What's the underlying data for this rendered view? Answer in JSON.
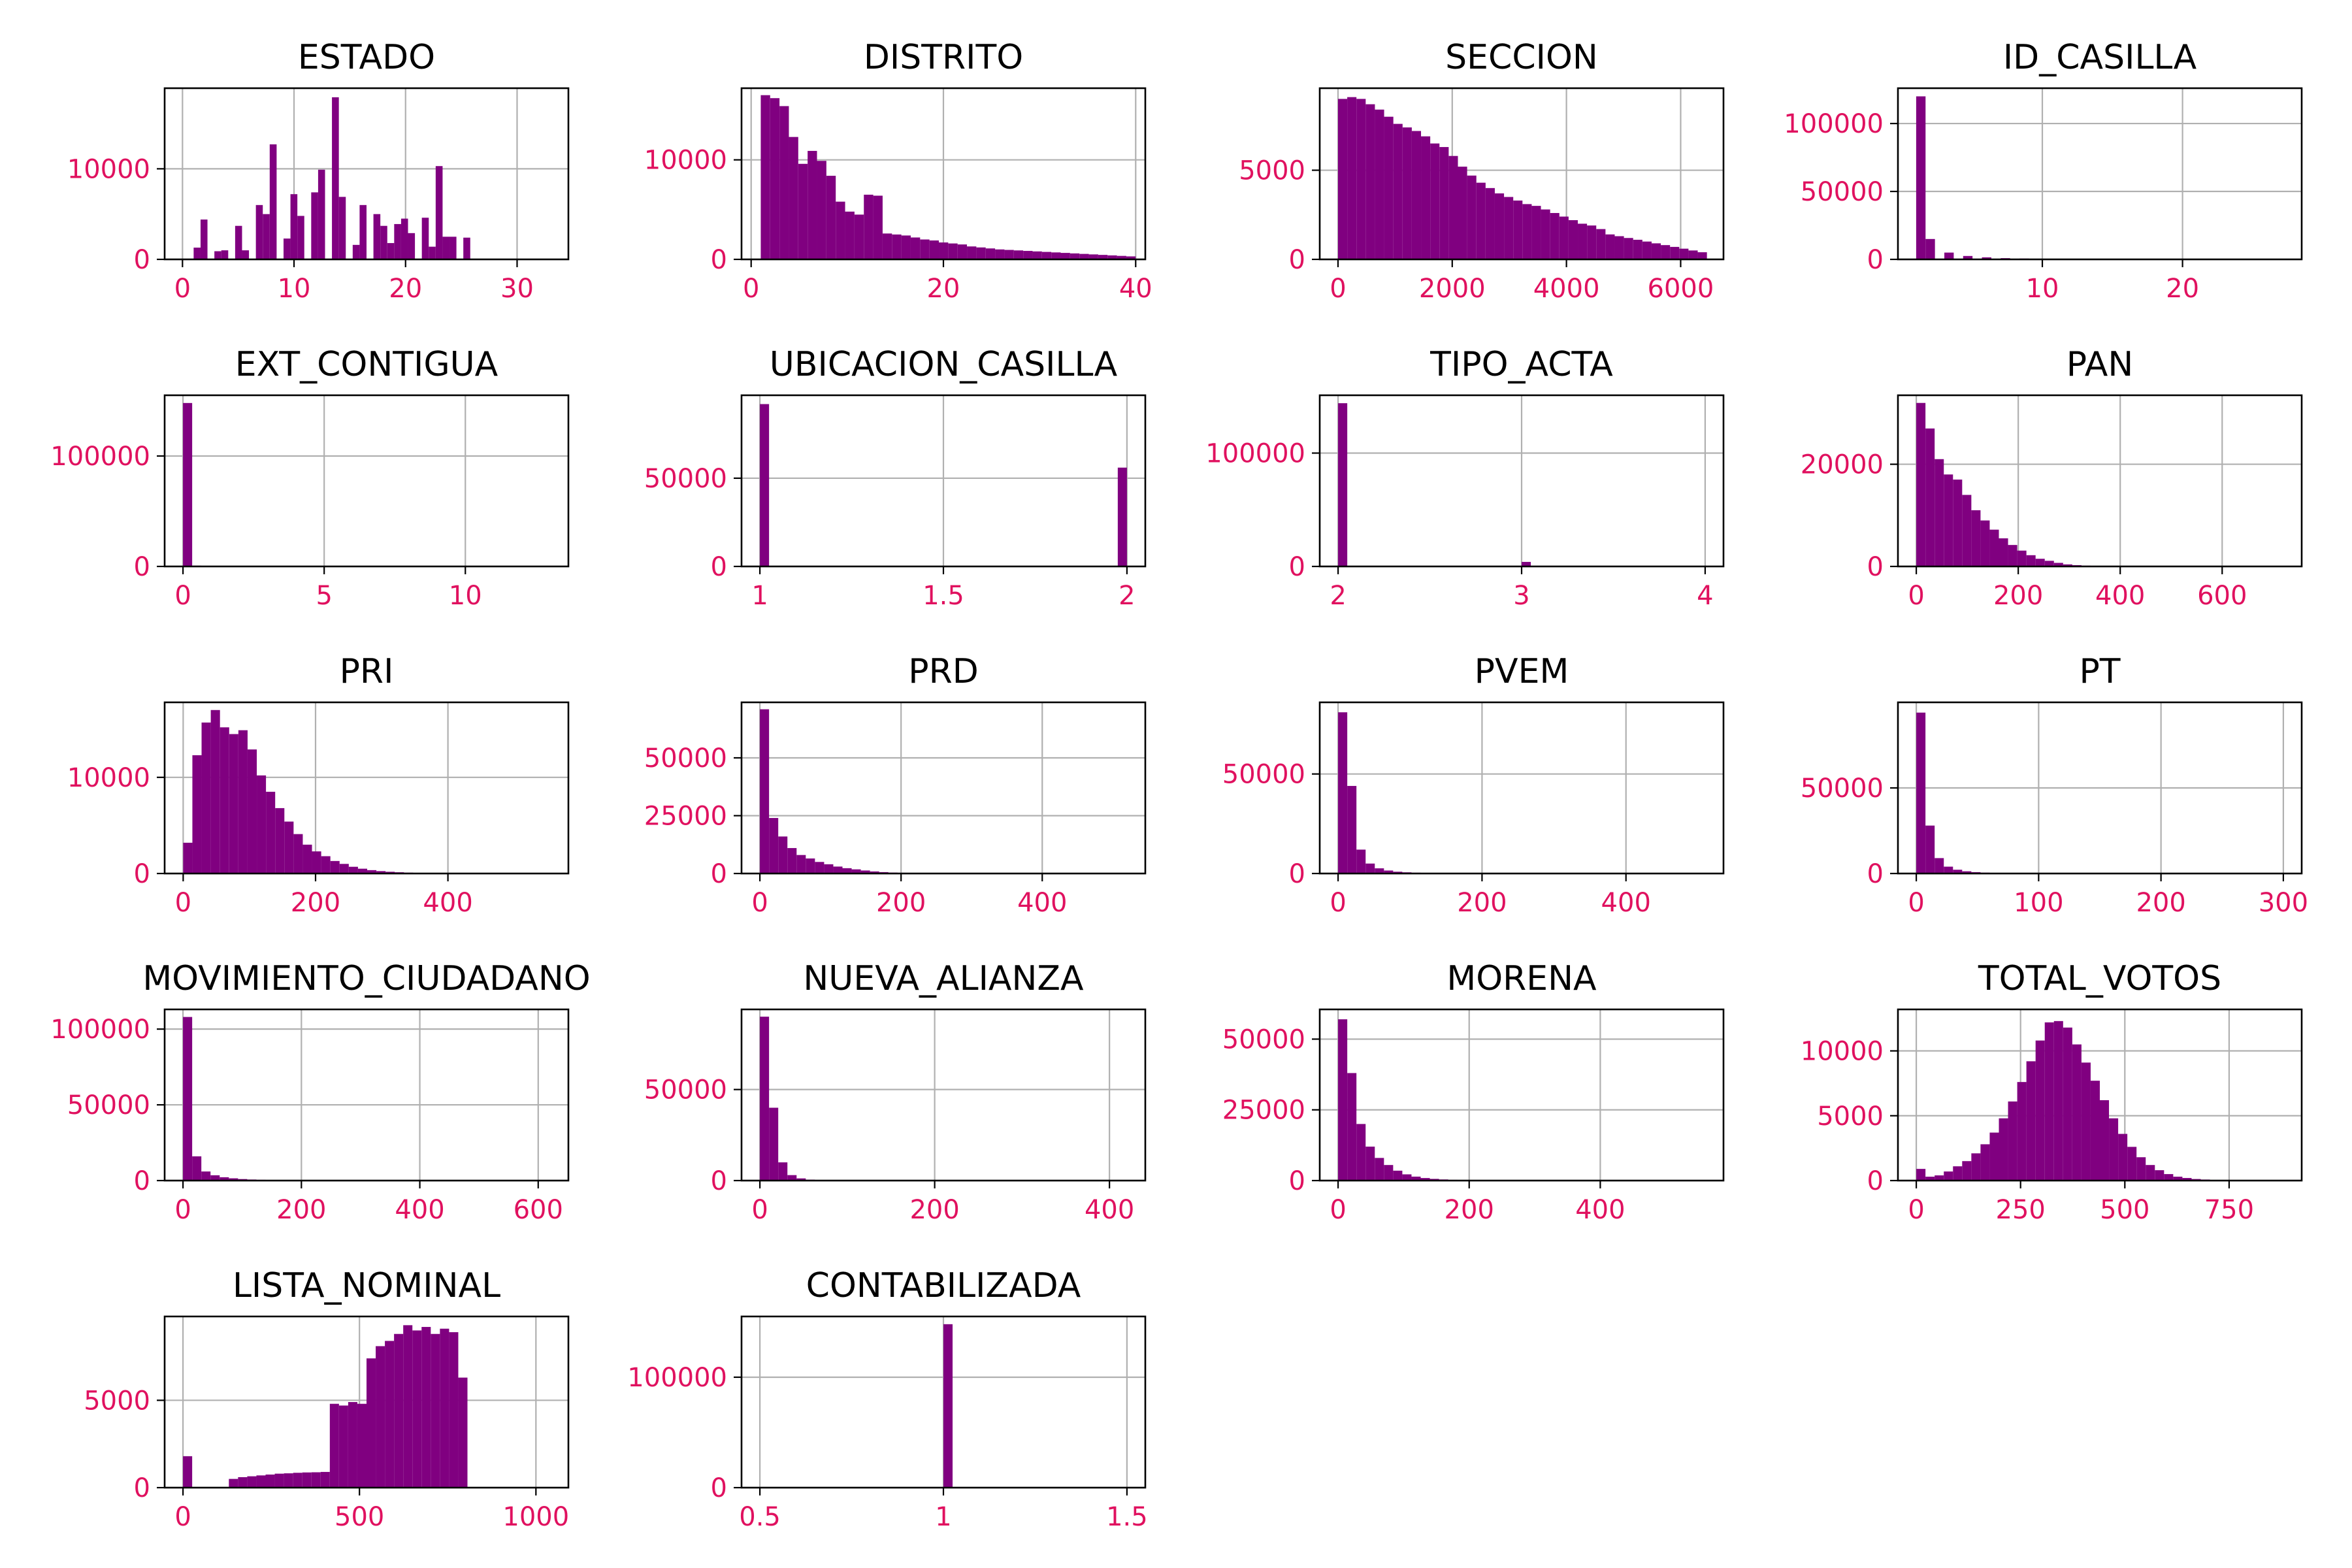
{
  "figure": {
    "bar_color": "#800080",
    "tick_label_color": "#e0115f",
    "frame_color": "#000000",
    "grid_color": "#b0b0b0"
  },
  "chart_data": [
    {
      "type": "bar",
      "title": "ESTADO",
      "grid": true,
      "xlim": [
        -1.6,
        34.6
      ],
      "ylim": [
        0,
        18900
      ],
      "xticks": [
        0,
        10,
        20,
        30
      ],
      "yticks": [
        0,
        10000
      ],
      "bin_start": 1,
      "bin_width": 0.62,
      "values": [
        1300,
        4400,
        0,
        900,
        1000,
        0,
        3700,
        1000,
        0,
        6000,
        5000,
        12700,
        0,
        2300,
        7200,
        4800,
        0,
        7400,
        9900,
        0,
        17900,
        6900,
        0,
        1600,
        6000,
        0,
        5000,
        3700,
        1800,
        3900,
        4500,
        2900,
        0,
        4600,
        1400,
        10300,
        2500,
        2500,
        0,
        2400
      ]
    },
    {
      "type": "bar",
      "title": "DISTRITO",
      "grid": true,
      "xlim": [
        -1,
        41
      ],
      "ylim": [
        0,
        17200
      ],
      "xticks": [
        0,
        20,
        40
      ],
      "yticks": [
        0,
        10000
      ],
      "bin_start": 1,
      "bin_width": 0.975,
      "values": [
        16500,
        16200,
        15400,
        12300,
        9600,
        10900,
        9900,
        8400,
        5800,
        4800,
        4500,
        6500,
        6400,
        2600,
        2500,
        2400,
        2200,
        2000,
        1900,
        1700,
        1600,
        1500,
        1300,
        1200,
        1100,
        1000,
        950,
        900,
        850,
        800,
        750,
        700,
        650,
        600,
        550,
        500,
        450,
        400,
        350,
        300
      ]
    },
    {
      "type": "bar",
      "title": "SECCION",
      "grid": true,
      "xlim": [
        -320,
        6750
      ],
      "ylim": [
        0,
        9600
      ],
      "xticks": [
        0,
        2000,
        4000,
        6000
      ],
      "yticks": [
        0,
        5000
      ],
      "bin_start": 0,
      "bin_width": 161.5,
      "values": [
        9000,
        9100,
        9000,
        8700,
        8400,
        8000,
        7600,
        7400,
        7200,
        6900,
        6500,
        6300,
        5800,
        5200,
        4700,
        4300,
        4000,
        3700,
        3500,
        3300,
        3100,
        3000,
        2800,
        2600,
        2400,
        2200,
        2000,
        1900,
        1700,
        1400,
        1300,
        1200,
        1100,
        1000,
        900,
        800,
        700,
        600,
        500,
        400
      ]
    },
    {
      "type": "bar",
      "title": "ID_CASILLA",
      "grid": true,
      "xlim": [
        -0.3,
        28.5
      ],
      "ylim": [
        0,
        126000
      ],
      "xticks": [
        10,
        20
      ],
      "yticks": [
        0,
        50000,
        100000
      ],
      "bin_start": 1,
      "bin_width": 0.67,
      "values": [
        120000,
        15000,
        0,
        5000,
        0,
        2500,
        0,
        1500,
        0,
        900,
        0,
        600,
        0,
        400,
        0,
        300,
        0,
        200,
        0,
        150,
        0,
        100,
        0,
        100,
        0,
        80,
        0,
        60,
        0,
        50,
        0,
        40,
        0,
        30,
        0,
        20,
        0,
        20,
        0,
        10
      ]
    },
    {
      "type": "bar",
      "title": "EXT_CONTIGUA",
      "grid": true,
      "xlim": [
        -0.65,
        13.65
      ],
      "ylim": [
        0,
        155000
      ],
      "xticks": [
        0,
        5,
        10
      ],
      "yticks": [
        0,
        100000
      ],
      "bin_start": 0,
      "bin_width": 0.325,
      "values": [
        148000,
        700,
        0,
        300,
        0,
        200,
        0,
        100,
        0,
        100,
        0,
        50,
        0,
        50,
        0,
        40,
        0,
        30,
        0,
        20,
        0,
        20,
        0,
        10,
        0,
        10,
        0,
        10,
        0,
        10,
        0,
        10,
        0,
        10,
        0,
        10,
        0,
        10,
        0,
        10
      ]
    },
    {
      "type": "bar",
      "title": "UBICACION_CASILLA",
      "grid": true,
      "xlim": [
        0.95,
        2.05
      ],
      "ylim": [
        0,
        97000
      ],
      "xticks": [
        1.0,
        1.5,
        2.0
      ],
      "yticks": [
        0,
        50000
      ],
      "bin_start": 1,
      "bin_width": 0.025,
      "values": [
        92000,
        0,
        0,
        0,
        0,
        0,
        0,
        0,
        0,
        0,
        0,
        0,
        0,
        0,
        0,
        0,
        0,
        0,
        0,
        0,
        0,
        0,
        0,
        0,
        0,
        0,
        0,
        0,
        0,
        0,
        0,
        0,
        0,
        0,
        0,
        0,
        0,
        0,
        0,
        56000
      ]
    },
    {
      "type": "bar",
      "title": "TIPO_ACTA",
      "grid": true,
      "xlim": [
        1.9,
        4.1
      ],
      "ylim": [
        0,
        151000
      ],
      "xticks": [
        2,
        3,
        4
      ],
      "yticks": [
        0,
        100000
      ],
      "bin_start": 2,
      "bin_width": 0.05,
      "values": [
        144000,
        0,
        0,
        0,
        0,
        0,
        0,
        0,
        0,
        0,
        0,
        0,
        0,
        0,
        0,
        0,
        0,
        0,
        0,
        0,
        4000,
        0,
        0,
        0,
        0,
        0,
        0,
        0,
        0,
        0,
        0,
        0,
        0,
        0,
        0,
        0,
        0,
        0,
        0,
        300
      ]
    },
    {
      "type": "bar",
      "title": "PAN",
      "grid": true,
      "xlim": [
        -36,
        756
      ],
      "ylim": [
        0,
        33500
      ],
      "xticks": [
        0,
        200,
        400,
        600
      ],
      "yticks": [
        0,
        20000
      ],
      "bin_start": 0,
      "bin_width": 18,
      "values": [
        32000,
        27000,
        21000,
        18000,
        17000,
        14000,
        11000,
        9000,
        7200,
        5500,
        4200,
        3100,
        2200,
        1500,
        1100,
        700,
        400,
        250,
        150,
        100,
        80,
        60,
        40,
        30,
        20,
        20,
        15,
        10,
        10,
        10,
        5,
        5,
        5,
        5,
        5,
        5,
        5,
        5,
        5,
        5
      ]
    },
    {
      "type": "bar",
      "title": "PRI",
      "grid": true,
      "xlim": [
        -28,
        582
      ],
      "ylim": [
        0,
        17800
      ],
      "xticks": [
        0,
        200,
        400
      ],
      "yticks": [
        0,
        10000
      ],
      "bin_start": 0,
      "bin_width": 13.9,
      "values": [
        3200,
        12300,
        15700,
        17000,
        15200,
        14500,
        14900,
        12900,
        10200,
        8500,
        6800,
        5400,
        4100,
        3000,
        2300,
        1800,
        1300,
        1000,
        700,
        500,
        350,
        250,
        180,
        130,
        90,
        60,
        40,
        30,
        20,
        15,
        10,
        8,
        6,
        5,
        4,
        3,
        2,
        2,
        1,
        1
      ]
    },
    {
      "type": "bar",
      "title": "PRD",
      "grid": true,
      "xlim": [
        -26,
        546
      ],
      "ylim": [
        0,
        74000
      ],
      "xticks": [
        0,
        200,
        400
      ],
      "yticks": [
        0,
        25000,
        50000
      ],
      "bin_start": 0,
      "bin_width": 13,
      "values": [
        71000,
        24000,
        16000,
        11000,
        8000,
        6500,
        5000,
        4000,
        3000,
        2300,
        1800,
        1300,
        900,
        600,
        400,
        300,
        200,
        150,
        100,
        80,
        60,
        40,
        30,
        20,
        15,
        10,
        8,
        6,
        5,
        4,
        3,
        2,
        2,
        1,
        1,
        1,
        1,
        1,
        1,
        1
      ]
    },
    {
      "type": "bar",
      "title": "PVEM",
      "grid": true,
      "xlim": [
        -25.5,
        535.5
      ],
      "ylim": [
        0,
        86000
      ],
      "xticks": [
        0,
        200,
        400
      ],
      "yticks": [
        0,
        50000
      ],
      "bin_start": 0,
      "bin_width": 12.75,
      "values": [
        81000,
        44000,
        12000,
        5000,
        2600,
        1500,
        900,
        600,
        400,
        300,
        200,
        150,
        100,
        80,
        60,
        40,
        30,
        20,
        15,
        10,
        8,
        6,
        5,
        4,
        3,
        2,
        2,
        1,
        1,
        1,
        1,
        1,
        1,
        1,
        1,
        1,
        1,
        1,
        1,
        1
      ]
    },
    {
      "type": "bar",
      "title": "PT",
      "grid": true,
      "xlim": [
        -15,
        315
      ],
      "ylim": [
        0,
        100000
      ],
      "xticks": [
        0,
        100,
        200,
        300
      ],
      "yticks": [
        0,
        50000
      ],
      "bin_start": 0,
      "bin_width": 7.5,
      "values": [
        94000,
        28000,
        9000,
        4000,
        2200,
        1300,
        800,
        500,
        300,
        200,
        150,
        100,
        80,
        60,
        40,
        30,
        20,
        15,
        10,
        8,
        6,
        5,
        4,
        3,
        2,
        2,
        1,
        1,
        1,
        1,
        1,
        1,
        1,
        1,
        1,
        1,
        1,
        1,
        1,
        1
      ]
    },
    {
      "type": "bar",
      "title": "MOVIMIENTO_CIUDADANO",
      "grid": true,
      "xlim": [
        -31,
        651
      ],
      "ylim": [
        0,
        113000
      ],
      "xticks": [
        0,
        200,
        400,
        600
      ],
      "yticks": [
        0,
        50000,
        100000
      ],
      "bin_start": 0,
      "bin_width": 15.5,
      "values": [
        108000,
        16000,
        6000,
        3500,
        2200,
        1500,
        1000,
        700,
        500,
        350,
        250,
        180,
        130,
        90,
        60,
        40,
        30,
        20,
        15,
        10,
        8,
        6,
        5,
        4,
        3,
        2,
        2,
        1,
        1,
        1,
        1,
        1,
        1,
        1,
        1,
        1,
        1,
        1,
        1,
        1
      ]
    },
    {
      "type": "bar",
      "title": "NUEVA_ALIANZA",
      "grid": true,
      "xlim": [
        -21,
        441
      ],
      "ylim": [
        0,
        94000
      ],
      "xticks": [
        0,
        200,
        400
      ],
      "yticks": [
        0,
        50000
      ],
      "bin_start": 0,
      "bin_width": 10.5,
      "values": [
        90000,
        40000,
        10000,
        3000,
        1200,
        500,
        300,
        200,
        100,
        80,
        60,
        40,
        30,
        20,
        15,
        10,
        8,
        6,
        5,
        4,
        3,
        2,
        2,
        1,
        1,
        1,
        1,
        1,
        1,
        1,
        1,
        1,
        1,
        1,
        1,
        1,
        1,
        1,
        1,
        1
      ]
    },
    {
      "type": "bar",
      "title": "MORENA",
      "grid": true,
      "xlim": [
        -28,
        588
      ],
      "ylim": [
        0,
        60500
      ],
      "xticks": [
        0,
        200,
        400
      ],
      "yticks": [
        0,
        25000,
        50000
      ],
      "bin_start": 0,
      "bin_width": 14,
      "values": [
        57000,
        38000,
        20000,
        12000,
        8000,
        5500,
        3500,
        2200,
        1400,
        900,
        600,
        400,
        250,
        150,
        100,
        70,
        50,
        30,
        20,
        15,
        10,
        8,
        6,
        4,
        3,
        2,
        2,
        1,
        1,
        1,
        1,
        1,
        1,
        1,
        1,
        1,
        1,
        1,
        1,
        1
      ]
    },
    {
      "type": "bar",
      "title": "TOTAL_VOTOS",
      "grid": true,
      "xlim": [
        -44,
        924
      ],
      "ylim": [
        0,
        13200
      ],
      "xticks": [
        0,
        250,
        500,
        750
      ],
      "yticks": [
        0,
        5000,
        10000
      ],
      "bin_start": 0,
      "bin_width": 22,
      "values": [
        900,
        300,
        400,
        700,
        1100,
        1500,
        2100,
        2800,
        3700,
        4800,
        6100,
        7600,
        9200,
        10800,
        12200,
        12300,
        11800,
        10500,
        9100,
        7700,
        6200,
        4800,
        3600,
        2600,
        1800,
        1200,
        800,
        500,
        300,
        200,
        120,
        80,
        50,
        30,
        20,
        10,
        8,
        5,
        3,
        2
      ]
    },
    {
      "type": "bar",
      "title": "LISTA_NOMINAL",
      "grid": true,
      "xlim": [
        -52,
        1092
      ],
      "ylim": [
        0,
        9800
      ],
      "xticks": [
        0,
        500,
        1000
      ],
      "yticks": [
        0,
        5000
      ],
      "bin_start": 0,
      "bin_width": 26,
      "values": [
        1800,
        0,
        0,
        0,
        0,
        500,
        600,
        650,
        700,
        750,
        800,
        820,
        850,
        870,
        880,
        900,
        4800,
        4700,
        4900,
        4800,
        7400,
        8100,
        8400,
        8800,
        9300,
        9000,
        9200,
        8800,
        9100,
        8900,
        6300,
        0,
        0,
        0,
        0,
        0,
        0,
        0,
        0,
        0
      ]
    },
    {
      "type": "bar",
      "title": "CONTABILIZADA",
      "grid": true,
      "xlim": [
        0.45,
        1.55
      ],
      "ylim": [
        0,
        155000
      ],
      "xticks": [
        0.5,
        1.0,
        1.5
      ],
      "yticks": [
        0,
        100000
      ],
      "bin_start": 0.5,
      "bin_width": 0.025,
      "values": [
        0,
        0,
        0,
        0,
        0,
        0,
        0,
        0,
        0,
        0,
        0,
        0,
        0,
        0,
        0,
        0,
        0,
        0,
        0,
        0,
        148000,
        0,
        0,
        0,
        0,
        0,
        0,
        0,
        0,
        0,
        0,
        0,
        0,
        0,
        0,
        0,
        0,
        0,
        0,
        0
      ]
    }
  ]
}
